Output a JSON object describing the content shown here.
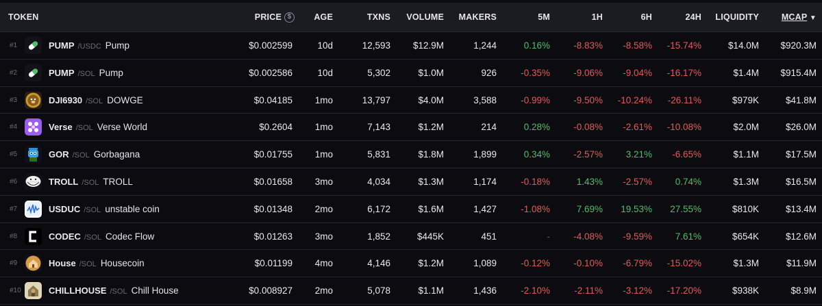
{
  "header": {
    "token": "TOKEN",
    "price": "PRICE",
    "price_icon": "$",
    "age": "AGE",
    "txns": "TXNS",
    "volume": "VOLUME",
    "makers": "MAKERS",
    "m5": "5M",
    "h1": "1H",
    "h6": "6H",
    "h24": "24H",
    "liquidity": "LIQUIDITY",
    "mcap": "MCAP",
    "mcap_sort_icon": "sort-descending-icon"
  },
  "rows": [
    {
      "rank": "#1",
      "symbol": "PUMP",
      "quote": "/USDC",
      "name": "Pump",
      "logo": "pill-icon",
      "price": "$0.002599",
      "age": "10d",
      "txns": "12,593",
      "volume": "$12.9M",
      "makers": "1,244",
      "m5": "0.16%",
      "h1": "-8.83%",
      "h6": "-8.58%",
      "h24": "-15.74%",
      "liquidity": "$14.0M",
      "mcap": "$920.3M"
    },
    {
      "rank": "#2",
      "symbol": "PUMP",
      "quote": "/SOL",
      "name": "Pump",
      "logo": "pill-icon",
      "price": "$0.002586",
      "age": "10d",
      "txns": "5,302",
      "volume": "$1.0M",
      "makers": "926",
      "m5": "-0.35%",
      "h1": "-9.06%",
      "h6": "-9.04%",
      "h24": "-16.17%",
      "liquidity": "$1.4M",
      "mcap": "$915.4M"
    },
    {
      "rank": "#3",
      "symbol": "DJI6930",
      "quote": "/SOL",
      "name": "DOWGE",
      "logo": "dog-coin-icon",
      "price": "$0.04185",
      "age": "1mo",
      "txns": "13,797",
      "volume": "$4.0M",
      "makers": "3,588",
      "m5": "-0.99%",
      "h1": "-9.50%",
      "h6": "-10.24%",
      "h24": "-26.11%",
      "liquidity": "$979K",
      "mcap": "$41.8M"
    },
    {
      "rank": "#4",
      "symbol": "Verse",
      "quote": "/SOL",
      "name": "Verse World",
      "logo": "verse-icon",
      "price": "$0.2604",
      "age": "1mo",
      "txns": "7,143",
      "volume": "$1.2M",
      "makers": "214",
      "m5": "0.28%",
      "h1": "-0.08%",
      "h6": "-2.61%",
      "h24": "-10.08%",
      "liquidity": "$2.0M",
      "mcap": "$26.0M"
    },
    {
      "rank": "#5",
      "symbol": "GOR",
      "quote": "/SOL",
      "name": "Gorbagana",
      "logo": "trash-can-mascot-icon",
      "price": "$0.01755",
      "age": "1mo",
      "txns": "5,831",
      "volume": "$1.8M",
      "makers": "1,899",
      "m5": "0.34%",
      "h1": "-2.57%",
      "h6": "3.21%",
      "h24": "-6.65%",
      "liquidity": "$1.1M",
      "mcap": "$17.5M"
    },
    {
      "rank": "#6",
      "symbol": "TROLL",
      "quote": "/SOL",
      "name": "TROLL",
      "logo": "troll-face-icon",
      "price": "$0.01658",
      "age": "3mo",
      "txns": "4,034",
      "volume": "$1.3M",
      "makers": "1,174",
      "m5": "-0.18%",
      "h1": "1.43%",
      "h6": "-2.57%",
      "h24": "0.74%",
      "liquidity": "$1.3M",
      "mcap": "$16.5M"
    },
    {
      "rank": "#7",
      "symbol": "USDUC",
      "quote": "/SOL",
      "name": "unstable coin",
      "logo": "wave-chart-icon",
      "price": "$0.01348",
      "age": "2mo",
      "txns": "6,172",
      "volume": "$1.6M",
      "makers": "1,427",
      "m5": "-1.08%",
      "h1": "7.69%",
      "h6": "19.53%",
      "h24": "27.55%",
      "liquidity": "$810K",
      "mcap": "$13.4M"
    },
    {
      "rank": "#8",
      "symbol": "CODEC",
      "quote": "/SOL",
      "name": "Codec Flow",
      "logo": "codec-c-icon",
      "price": "$0.01263",
      "age": "3mo",
      "txns": "1,852",
      "volume": "$445K",
      "makers": "451",
      "m5": "-",
      "h1": "-4.08%",
      "h6": "-9.59%",
      "h24": "7.61%",
      "liquidity": "$654K",
      "mcap": "$12.6M"
    },
    {
      "rank": "#9",
      "symbol": "House",
      "quote": "/SOL",
      "name": "Housecoin",
      "logo": "house-coin-icon",
      "price": "$0.01199",
      "age": "4mo",
      "txns": "4,146",
      "volume": "$1.2M",
      "makers": "1,089",
      "m5": "-0.12%",
      "h1": "-0.10%",
      "h6": "-6.79%",
      "h24": "-15.02%",
      "liquidity": "$1.3M",
      "mcap": "$11.9M"
    },
    {
      "rank": "#10",
      "symbol": "CHILLHOUSE",
      "quote": "/SOL",
      "name": "Chill House",
      "logo": "chill-house-icon",
      "price": "$0.008927",
      "age": "2mo",
      "txns": "5,078",
      "volume": "$1.1M",
      "makers": "1,436",
      "m5": "-2.10%",
      "h1": "-2.11%",
      "h6": "-3.12%",
      "h24": "-17.20%",
      "liquidity": "$938K",
      "mcap": "$8.9M"
    }
  ],
  "colors": {
    "positive": "#4fbf6a",
    "negative": "#e05d5d",
    "header_bg": "#1b1b22",
    "row_bg": "#0b0b10"
  }
}
